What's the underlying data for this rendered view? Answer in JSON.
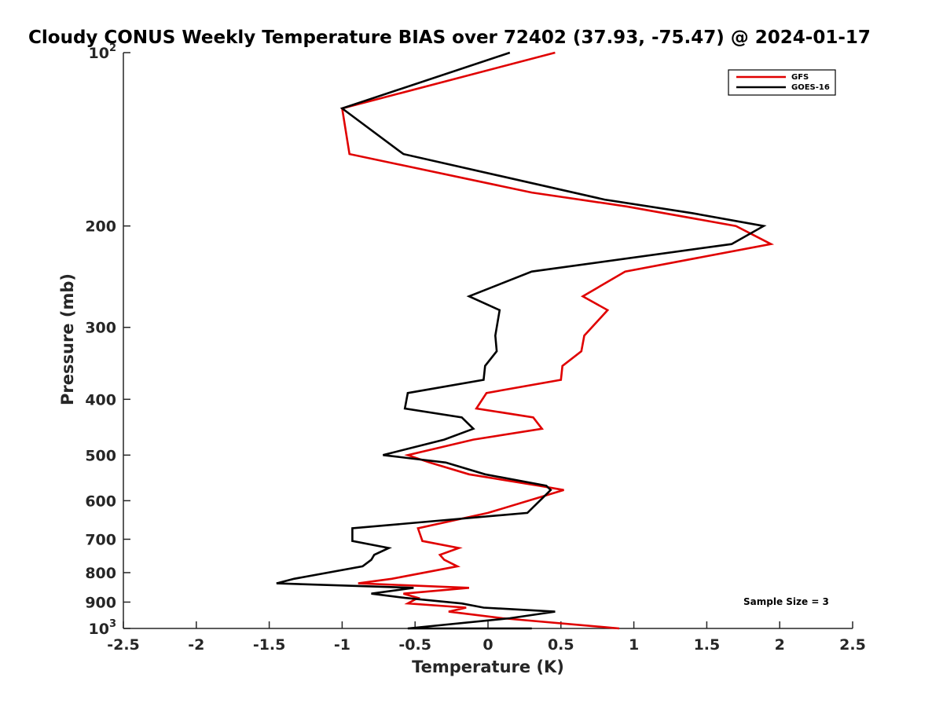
{
  "chart_data": {
    "type": "line",
    "title": "Cloudy CONUS Weekly Temperature BIAS over 72402 (37.93, -75.47) @ 2024-01-17",
    "xlabel": "Temperature (K)",
    "ylabel": "Pressure (mb)",
    "xlim": [
      -2.5,
      2.5
    ],
    "ylim": [
      1000,
      100
    ],
    "yscale": "log",
    "x_ticks": [
      -2.5,
      -2,
      -1.5,
      -1,
      -0.5,
      0,
      0.5,
      1,
      1.5,
      2,
      2.5
    ],
    "x_tick_labels": [
      "-2.5",
      "-2",
      "-1.5",
      "-1",
      "-0.5",
      "0",
      "0.5",
      "1",
      "1.5",
      "2",
      "2.5"
    ],
    "y_ticks": [
      100,
      200,
      300,
      400,
      500,
      600,
      700,
      800,
      900,
      1000
    ],
    "y_tick_labels": [
      {
        "text": "10",
        "sup": "2"
      },
      {
        "text": "200"
      },
      {
        "text": "300"
      },
      {
        "text": "400"
      },
      {
        "text": "500"
      },
      {
        "text": "600"
      },
      {
        "text": "700"
      },
      {
        "text": "800"
      },
      {
        "text": "900"
      },
      {
        "text": "10",
        "sup": "3"
      }
    ],
    "legend_position": "top-right",
    "grid": false,
    "annotation": "Sample Size = 3",
    "series": [
      {
        "name": "GFS",
        "color": "#e00000",
        "points": [
          [
            0.46,
            100
          ],
          [
            -1.0,
            125
          ],
          [
            -0.95,
            150
          ],
          [
            0.3,
            175
          ],
          [
            0.95,
            185
          ],
          [
            1.7,
            200
          ],
          [
            1.94,
            215
          ],
          [
            0.94,
            240
          ],
          [
            0.65,
            265
          ],
          [
            0.82,
            280
          ],
          [
            0.66,
            310
          ],
          [
            0.64,
            330
          ],
          [
            0.51,
            350
          ],
          [
            0.5,
            370
          ],
          [
            -0.01,
            390
          ],
          [
            -0.08,
            415
          ],
          [
            0.31,
            430
          ],
          [
            0.37,
            450
          ],
          [
            -0.1,
            470
          ],
          [
            -0.55,
            500
          ],
          [
            -0.4,
            515
          ],
          [
            -0.13,
            540
          ],
          [
            0.35,
            565
          ],
          [
            0.52,
            575
          ],
          [
            0.0,
            630
          ],
          [
            -0.48,
            670
          ],
          [
            -0.45,
            705
          ],
          [
            -0.2,
            725
          ],
          [
            -0.33,
            745
          ],
          [
            -0.3,
            760
          ],
          [
            -0.21,
            780
          ],
          [
            -0.66,
            820
          ],
          [
            -0.89,
            835
          ],
          [
            -0.13,
            850
          ],
          [
            -0.58,
            870
          ],
          [
            -0.48,
            885
          ],
          [
            -0.55,
            905
          ],
          [
            -0.15,
            920
          ],
          [
            -0.27,
            935
          ],
          [
            0.1,
            960
          ],
          [
            0.9,
            1000
          ]
        ]
      },
      {
        "name": "GOES-16",
        "color": "#000000",
        "points": [
          [
            0.15,
            100
          ],
          [
            -1.0,
            125
          ],
          [
            -0.58,
            150
          ],
          [
            0.8,
            180
          ],
          [
            1.4,
            190
          ],
          [
            1.89,
            200
          ],
          [
            1.67,
            215
          ],
          [
            0.3,
            240
          ],
          [
            -0.13,
            265
          ],
          [
            0.08,
            280
          ],
          [
            0.05,
            310
          ],
          [
            0.06,
            330
          ],
          [
            -0.02,
            350
          ],
          [
            -0.03,
            370
          ],
          [
            -0.55,
            390
          ],
          [
            -0.57,
            415
          ],
          [
            -0.18,
            430
          ],
          [
            -0.1,
            450
          ],
          [
            -0.3,
            470
          ],
          [
            -0.72,
            500
          ],
          [
            -0.29,
            515
          ],
          [
            -0.02,
            540
          ],
          [
            0.4,
            565
          ],
          [
            0.43,
            575
          ],
          [
            0.27,
            630
          ],
          [
            -0.93,
            670
          ],
          [
            -0.93,
            705
          ],
          [
            -0.68,
            725
          ],
          [
            -0.78,
            745
          ],
          [
            -0.8,
            760
          ],
          [
            -0.86,
            780
          ],
          [
            -1.33,
            820
          ],
          [
            -1.45,
            835
          ],
          [
            -0.51,
            850
          ],
          [
            -0.8,
            870
          ],
          [
            -0.57,
            885
          ],
          [
            -0.18,
            905
          ],
          [
            -0.03,
            920
          ],
          [
            0.46,
            935
          ],
          [
            0.15,
            960
          ],
          [
            -0.55,
            1000
          ],
          [
            0.3,
            1000
          ]
        ]
      }
    ]
  }
}
